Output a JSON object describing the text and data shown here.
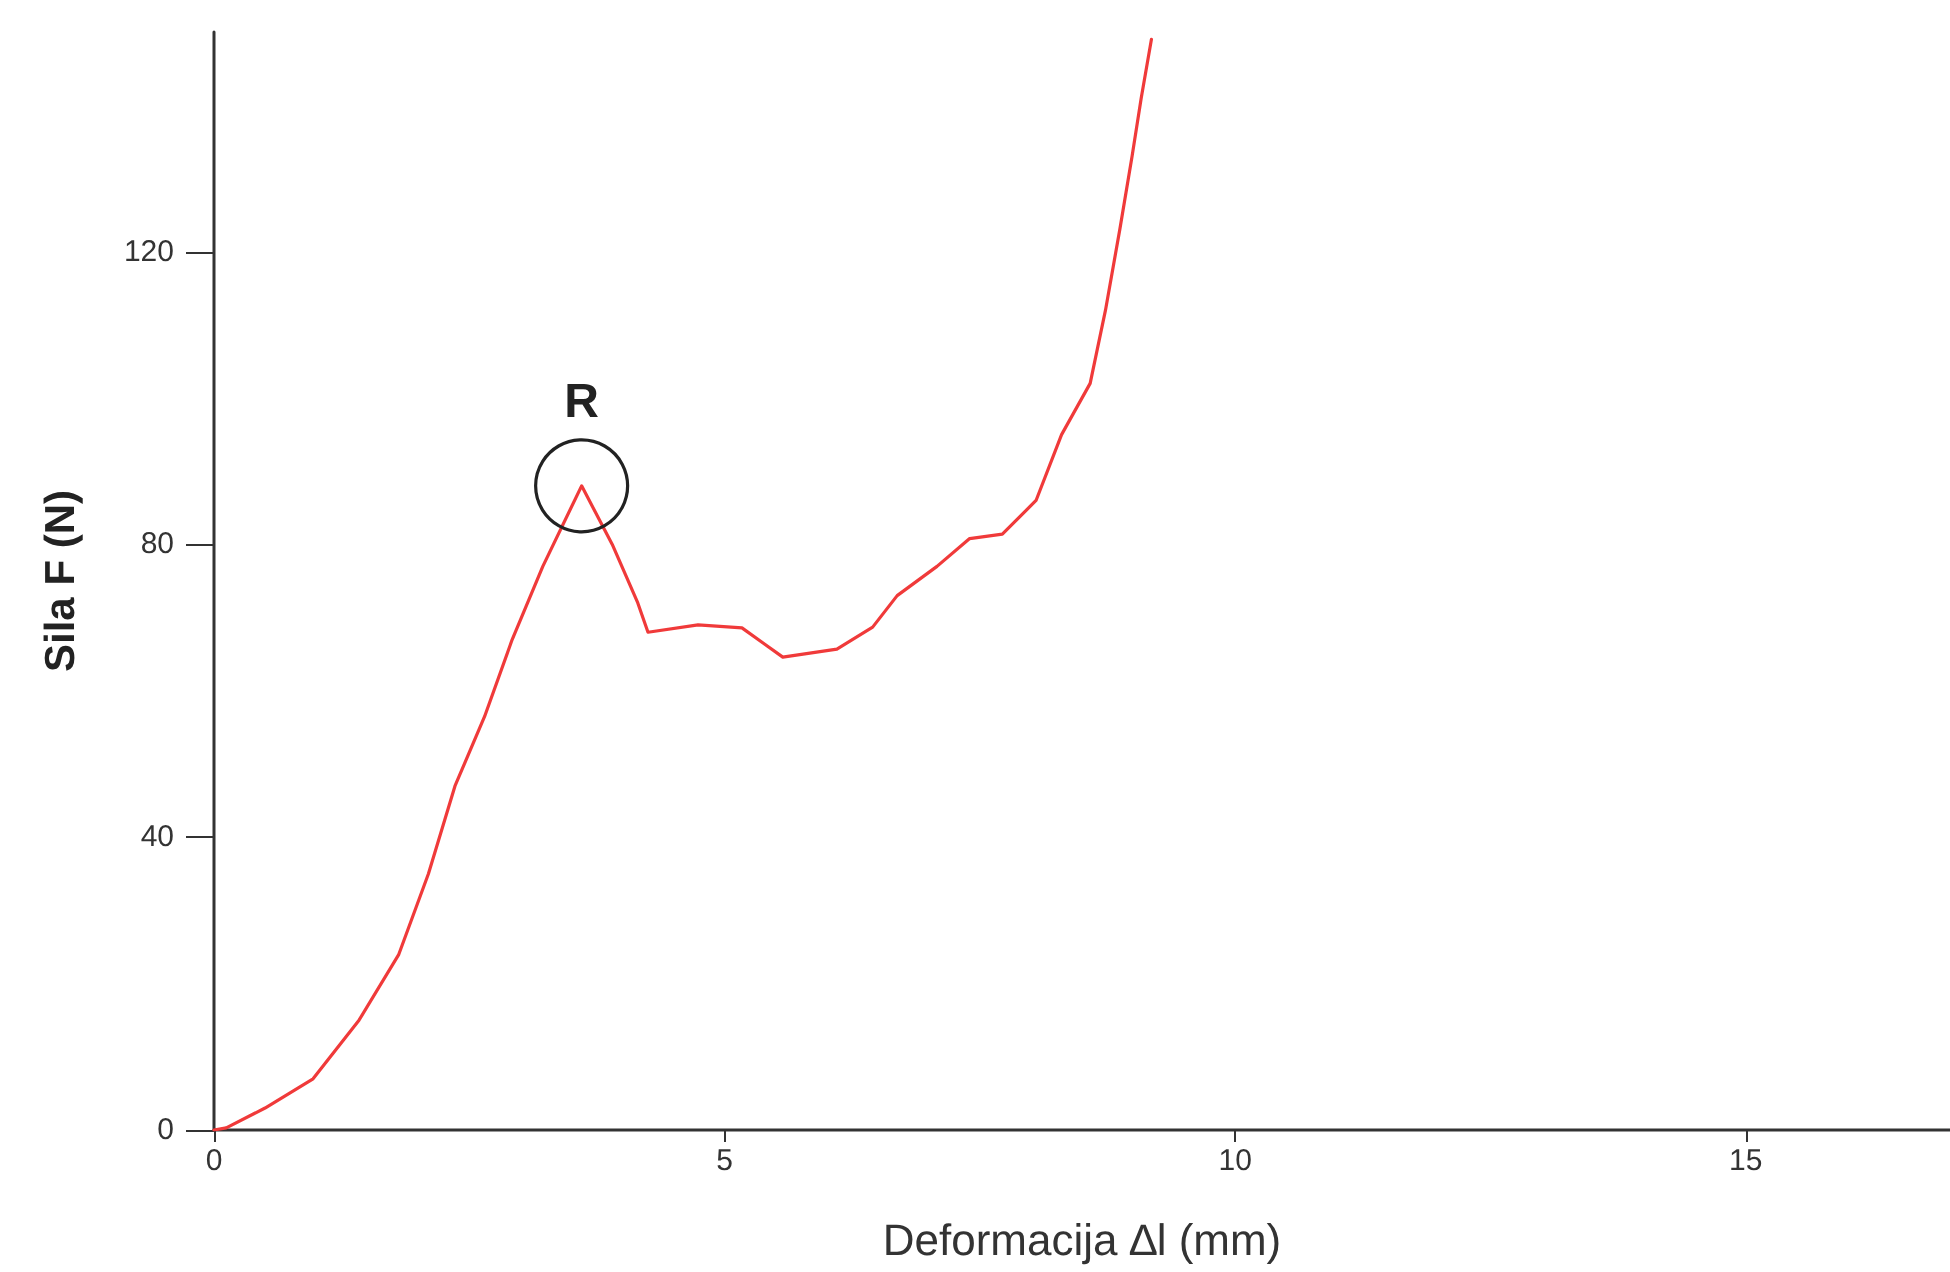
{
  "chart_data": {
    "type": "line",
    "xlabel": "Deformacija ∆l (mm)",
    "ylabel": "Sila F (N)",
    "xlim": [
      0,
      17
    ],
    "xticks": [
      0,
      5,
      10,
      15
    ],
    "ylim": [
      0,
      150
    ],
    "yticks": [
      0,
      40,
      80,
      120
    ],
    "grid": false,
    "marker": "none",
    "line_style": "solid",
    "annotations": [
      {
        "text": "R",
        "x": 3.6,
        "y": 88
      }
    ],
    "series": [
      {
        "color": "#f03a3a",
        "x": [
          0,
          0.12,
          0.5,
          0.97,
          1.42,
          1.81,
          2.1,
          2.36,
          2.65,
          2.92,
          3.22,
          3.6,
          3.9,
          4.15,
          4.25,
          4.74,
          5.17,
          5.38,
          5.57,
          6.1,
          6.45,
          6.69,
          7.08,
          7.4,
          7.72,
          8.05,
          8.3,
          8.58,
          8.73,
          8.87,
          8.99,
          9.08,
          9.18
        ],
        "values": [
          0,
          0.3,
          3,
          7,
          15,
          24,
          35,
          47,
          56.5,
          67,
          77,
          88,
          80,
          72,
          68,
          69,
          68.6,
          66.5,
          64.6,
          65.7,
          68.7,
          73,
          77,
          80.8,
          81.4,
          86,
          95,
          102,
          112,
          123,
          133,
          141,
          149
        ]
      }
    ]
  }
}
